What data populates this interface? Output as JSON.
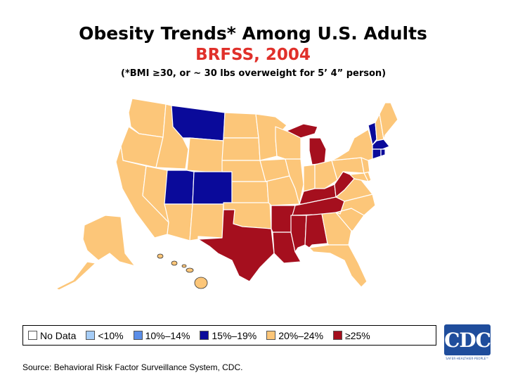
{
  "title": "Obesity Trends* Among U.S. Adults",
  "subtitle": "BRFSS, 2004",
  "note": "(*BMI ≥30, or ~ 30 lbs overweight for 5’ 4” person)",
  "legend": [
    {
      "label": "No Data",
      "color": "#ffffff"
    },
    {
      "label": "<10%",
      "color": "#a6cdf7"
    },
    {
      "label": "10%–14%",
      "color": "#5b8ee8"
    },
    {
      "label": "15%–19%",
      "color": "#0a0a9a"
    },
    {
      "label": "20%–24%",
      "color": "#fcc679"
    },
    {
      "label": "≥25%",
      "color": "#a50f1e"
    }
  ],
  "source": "Source: Behavioral Risk Factor Surveillance System, CDC.",
  "logo": {
    "text": "CDC",
    "tagline": "SAFER·HEALTHIER·PEOPLE™"
  },
  "state_categories": {
    "15-19": [
      "Montana",
      "Utah",
      "Colorado",
      "Vermont",
      "Massachusetts",
      "Connecticut",
      "Rhode Island"
    ],
    ">=25": [
      "Texas",
      "Louisiana",
      "Arkansas",
      "Mississippi",
      "Alabama",
      "Tennessee",
      "Kentucky",
      "West Virginia",
      "Michigan"
    ],
    "20-24": [
      "Washington",
      "Oregon",
      "California",
      "Nevada",
      "Idaho",
      "Arizona",
      "New Mexico",
      "Wyoming",
      "North Dakota",
      "South Dakota",
      "Nebraska",
      "Kansas",
      "Oklahoma",
      "Minnesota",
      "Iowa",
      "Missouri",
      "Wisconsin",
      "Illinois",
      "Indiana",
      "Ohio",
      "Pennsylvania",
      "New York",
      "Maine",
      "New Hampshire",
      "New Jersey",
      "Delaware",
      "Maryland",
      "Virginia",
      "North Carolina",
      "South Carolina",
      "Georgia",
      "Florida",
      "Alaska",
      "Hawaii"
    ]
  }
}
